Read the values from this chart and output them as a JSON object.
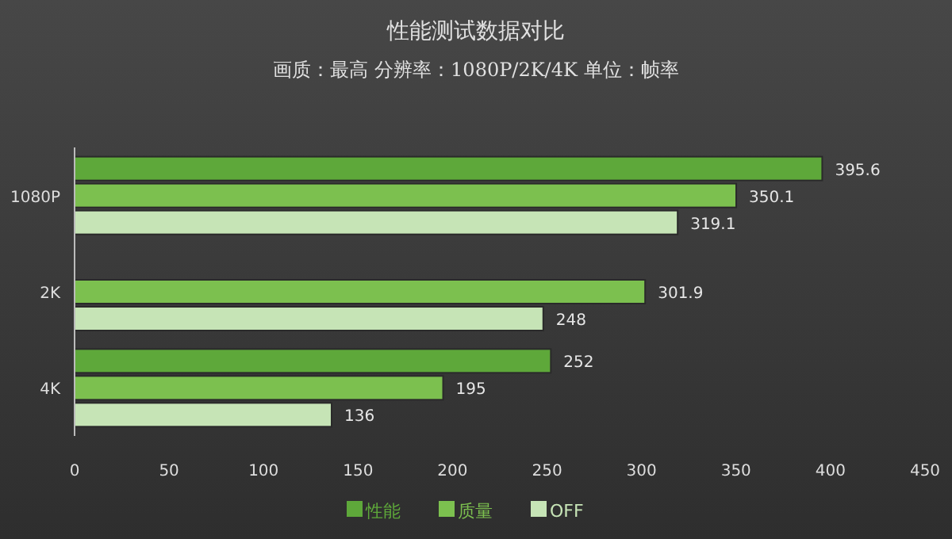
{
  "chart_data": {
    "type": "bar",
    "orientation": "horizontal",
    "title": "性能测试数据对比",
    "subtitle": "画质：最高 分辨率：1080P/2K/4K 单位：帧率",
    "categories": [
      "1080P",
      "2K",
      "4K"
    ],
    "series": [
      {
        "name": "性能",
        "color": "#5ea83a",
        "values": [
          395.6,
          null,
          252
        ],
        "value_labels": [
          "395.6",
          null,
          "252"
        ]
      },
      {
        "name": "质量",
        "color": "#7cc04f",
        "values": [
          350.1,
          301.9,
          195
        ],
        "value_labels": [
          "350.1",
          "301.9",
          "195"
        ]
      },
      {
        "name": "OFF",
        "color": "#c6e4b6",
        "values": [
          319.1,
          248,
          136
        ],
        "value_labels": [
          "319.1",
          "248",
          "136"
        ]
      }
    ],
    "xlim": [
      0,
      450
    ],
    "xticks": [
      0,
      50,
      100,
      150,
      200,
      250,
      300,
      350,
      400,
      450
    ],
    "grid": false,
    "legend": "bottom"
  }
}
